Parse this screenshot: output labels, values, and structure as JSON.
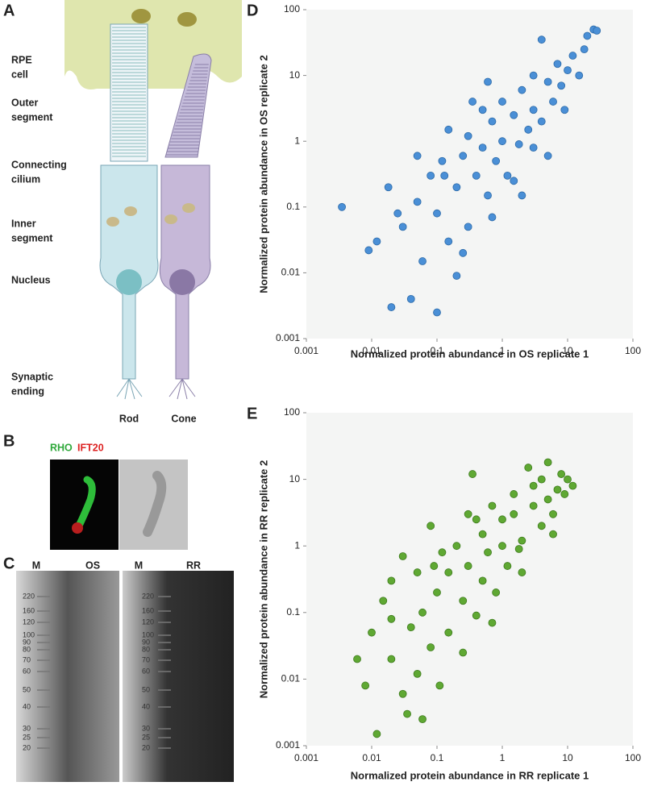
{
  "panels": {
    "a": {
      "letter": "A",
      "labels": [
        [
          "RPE",
          "cell"
        ],
        [
          "Outer",
          "segment"
        ],
        [
          "Connecting",
          "cilium"
        ],
        [
          "Inner",
          "segment"
        ],
        [
          "Nucleus"
        ],
        [
          "Synaptic",
          "ending"
        ]
      ],
      "cells": [
        "Rod",
        "Cone"
      ]
    },
    "b": {
      "letter": "B",
      "stains": [
        "RHO",
        "IFT20"
      ]
    },
    "c": {
      "letter": "C",
      "lanes": [
        "M",
        "OS",
        "M",
        "RR"
      ],
      "markers": [
        220,
        160,
        120,
        100,
        90,
        80,
        70,
        60,
        50,
        40,
        30,
        25,
        20
      ]
    }
  },
  "chart_data": [
    {
      "type": "scatter",
      "panel_label": "D",
      "xlabel": "Normalized protein abundance in OS replicate 1",
      "ylabel": "Normalized protein abundance in OS replicate 2",
      "log_x": true,
      "log_y": true,
      "color": "#4a8fd6",
      "edge_color": "#2c6aa8",
      "xlim": [
        0.001,
        100
      ],
      "ylim": [
        0.001,
        100
      ],
      "xticks": [
        0.001,
        0.01,
        0.1,
        1,
        10,
        100
      ],
      "yticks": [
        0.001,
        0.01,
        0.1,
        1,
        10,
        100
      ],
      "x": [
        0.0035,
        0.009,
        0.012,
        0.018,
        0.02,
        0.03,
        0.04,
        0.05,
        0.06,
        0.08,
        0.1,
        0.1,
        0.12,
        0.15,
        0.15,
        0.2,
        0.25,
        0.3,
        0.3,
        0.4,
        0.5,
        0.5,
        0.6,
        0.7,
        0.8,
        1,
        1,
        1.2,
        1.5,
        1.8,
        2,
        2.5,
        3,
        3,
        4,
        5,
        5,
        6,
        7,
        8,
        10,
        12,
        15,
        20,
        25,
        28,
        18,
        0.35,
        0.05,
        0.025,
        0.2,
        0.7,
        1.5,
        3,
        4,
        9,
        0.25,
        0.6,
        2,
        0.13
      ],
      "values": [
        0.1,
        0.022,
        0.03,
        0.2,
        0.003,
        0.05,
        0.004,
        0.12,
        0.015,
        0.3,
        0.0025,
        0.08,
        0.5,
        0.03,
        1.5,
        0.2,
        0.6,
        0.05,
        1.2,
        0.3,
        3,
        0.8,
        0.15,
        2,
        0.5,
        1,
        4,
        0.3,
        2.5,
        0.9,
        6,
        1.5,
        3,
        10,
        2,
        8,
        0.6,
        4,
        15,
        7,
        12,
        20,
        10,
        40,
        50,
        48,
        25,
        4,
        0.6,
        0.08,
        0.009,
        0.07,
        0.25,
        0.8,
        35,
        3,
        0.02,
        8,
        0.15,
        0.3
      ]
    },
    {
      "type": "scatter",
      "panel_label": "E",
      "xlabel": "Normalized protein abundance in RR replicate 1",
      "ylabel": "Normalized protein abundance in RR replicate 2",
      "log_x": true,
      "log_y": true,
      "color": "#5fa833",
      "edge_color": "#3d7a1c",
      "xlim": [
        0.001,
        100
      ],
      "ylim": [
        0.001,
        100
      ],
      "xticks": [
        0.001,
        0.01,
        0.1,
        1,
        10,
        100
      ],
      "yticks": [
        0.001,
        0.01,
        0.1,
        1,
        10,
        100
      ],
      "x": [
        0.006,
        0.008,
        0.01,
        0.012,
        0.015,
        0.02,
        0.02,
        0.03,
        0.035,
        0.04,
        0.05,
        0.06,
        0.06,
        0.08,
        0.08,
        0.1,
        0.12,
        0.15,
        0.15,
        0.2,
        0.25,
        0.3,
        0.3,
        0.35,
        0.4,
        0.5,
        0.5,
        0.6,
        0.7,
        0.8,
        1,
        1,
        1.2,
        1.5,
        1.5,
        2,
        2,
        3,
        3,
        4,
        4,
        5,
        5,
        6,
        7,
        8,
        9,
        10,
        12,
        0.02,
        0.05,
        0.09,
        0.25,
        0.4,
        0.7,
        1.8,
        2.5,
        6,
        0.03,
        0.11
      ],
      "values": [
        0.02,
        0.008,
        0.05,
        0.0015,
        0.15,
        0.02,
        0.3,
        0.006,
        0.003,
        0.06,
        0.4,
        0.0025,
        0.1,
        2,
        0.03,
        0.2,
        0.8,
        0.05,
        0.4,
        1,
        0.15,
        3,
        0.5,
        12,
        0.09,
        1.5,
        0.3,
        0.8,
        4,
        0.2,
        1,
        2.5,
        0.5,
        3,
        6,
        1.2,
        0.4,
        4,
        8,
        2,
        10,
        18,
        5,
        3,
        7,
        12,
        6,
        10,
        8,
        0.08,
        0.012,
        0.5,
        0.025,
        2.5,
        0.07,
        0.9,
        15,
        1.5,
        0.7,
        0.008
      ]
    }
  ]
}
